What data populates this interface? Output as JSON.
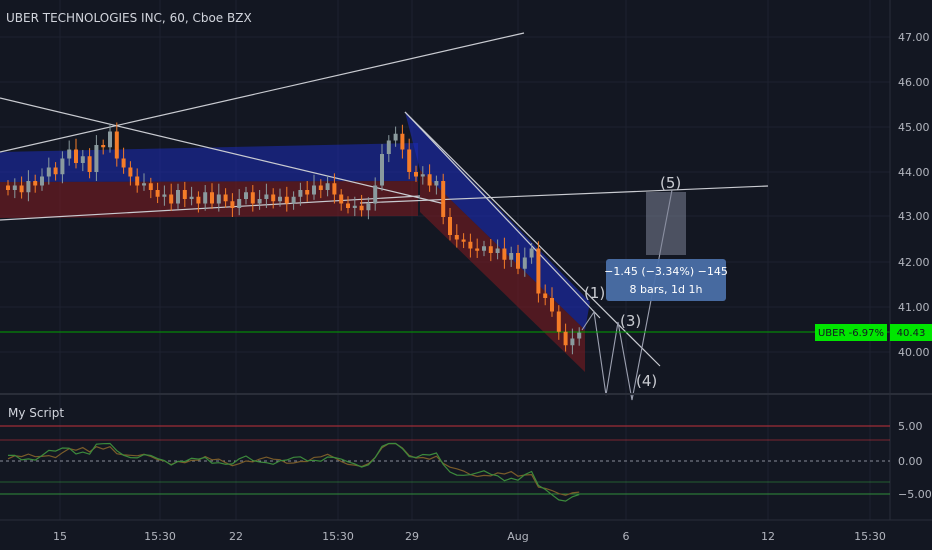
{
  "header": {
    "symbol_title": "UBER TECHNOLOGIES INC, 60, Cboe BZX"
  },
  "price_axis": {
    "ticks": [
      "47.00",
      "46.00",
      "45.00",
      "44.00",
      "43.00",
      "42.00",
      "41.00",
      "40.00"
    ]
  },
  "last_price": {
    "label": "UBER -6.97%",
    "value": "40.43",
    "color": "#00e600"
  },
  "measure_tooltip": {
    "line1": "−1.45 (−3.34%) −145",
    "line2": "8 bars, 1d 1h"
  },
  "wave_labels": [
    "(1)",
    "(3)",
    "(4)",
    "(5)"
  ],
  "indicator": {
    "name": "My Script",
    "ticks": [
      "5.00",
      "0.00",
      "−5.00"
    ]
  },
  "time_axis": {
    "ticks": [
      "15",
      "15:30",
      "22",
      "15:30",
      "29",
      "Aug",
      "6",
      "12",
      "15:30"
    ]
  },
  "chart_data": {
    "type": "candlestick",
    "title": "UBER TECHNOLOGIES INC, 60, Cboe BZX",
    "ylim": [
      39.1,
      47.4
    ],
    "up_color": "#8a9a9e",
    "down_color": "#f57c28",
    "candles_close": [
      43.6,
      43.7,
      43.55,
      43.8,
      43.7,
      43.9,
      44.1,
      43.95,
      44.3,
      44.5,
      44.2,
      44.35,
      44.0,
      44.6,
      44.55,
      44.9,
      44.3,
      44.1,
      43.9,
      43.7,
      43.75,
      43.6,
      43.45,
      43.5,
      43.3,
      43.6,
      43.4,
      43.45,
      43.3,
      43.55,
      43.3,
      43.5,
      43.35,
      43.2,
      43.4,
      43.55,
      43.3,
      43.4,
      43.5,
      43.35,
      43.45,
      43.3,
      43.45,
      43.6,
      43.5,
      43.7,
      43.6,
      43.75,
      43.5,
      43.3,
      43.2,
      43.25,
      43.15,
      43.3,
      43.7,
      44.4,
      44.7,
      44.85,
      44.5,
      44.0,
      43.9,
      43.95,
      43.7,
      43.8,
      43.0,
      42.6,
      42.5,
      42.45,
      42.3,
      42.25,
      42.35,
      42.2,
      42.3,
      42.05,
      42.2,
      41.85,
      42.1,
      42.3,
      41.3,
      41.2,
      40.9,
      40.45,
      40.15,
      40.3,
      40.43
    ],
    "channels": [
      {
        "name": "upper-blue-band",
        "y_top": 44.6,
        "y_bottom": 43.8,
        "color": "#1c2bb8"
      },
      {
        "name": "lower-red-band",
        "y_top": 43.8,
        "y_bottom": 43.05,
        "color": "#7a1a22"
      }
    ],
    "measure_box": {
      "y_top": 43.6,
      "y_bottom": 42.2
    }
  },
  "indicator_data": {
    "ylim": [
      -7,
      7.5
    ],
    "levels": [
      5,
      3,
      0,
      -3,
      -5
    ]
  }
}
